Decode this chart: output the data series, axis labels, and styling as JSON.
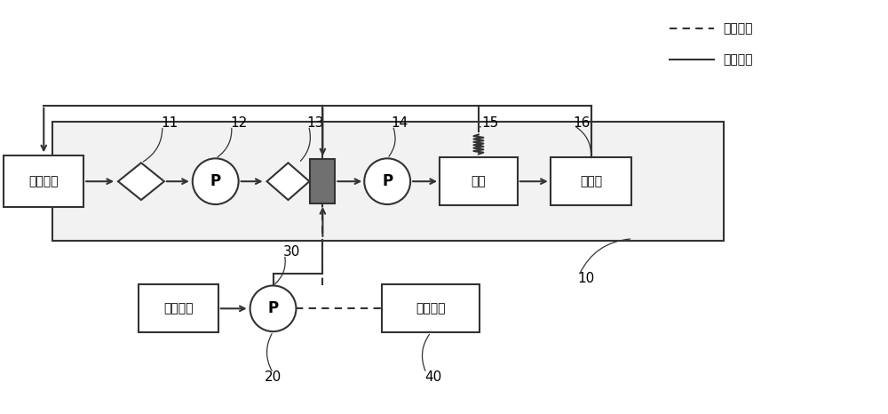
{
  "bg_color": "#ffffff",
  "line_color": "#333333",
  "box_dark_gray": "#707070",
  "legend_dashed_label": "电性连接",
  "legend_solid_label": "管路连接",
  "label_first_fuel": "第一燃料",
  "label_second_fuel": "第二燃料",
  "label_oil_rail": "油轨",
  "label_injector": "喷油器",
  "label_pump": "P",
  "label_control": "控制模块",
  "figsize": [
    10,
    4.66
  ],
  "dpi": 100
}
